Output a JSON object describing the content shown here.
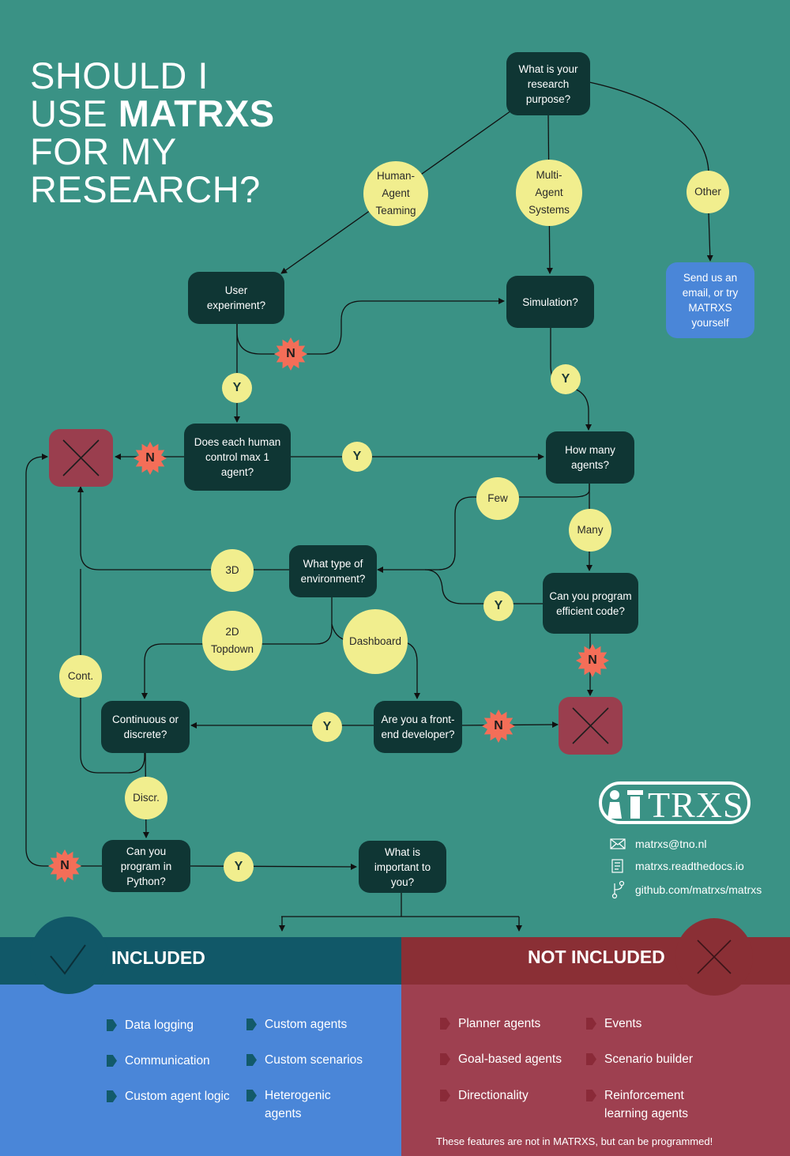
{
  "title": {
    "line1": "SHOULD I",
    "line2_prefix": "USE ",
    "line2_bold": "MATRXS",
    "line3": "FOR MY",
    "line4": "RESEARCH?"
  },
  "nodes": {
    "research_purpose": "What is your research purpose?",
    "human_agent_teaming": "Human-Agent Teaming",
    "multi_agent_systems": "Multi-Agent Systems",
    "other": "Other",
    "send_email": "Send us an email, or try MATRXS yourself",
    "user_experiment": "User experiment?",
    "simulation": "Simulation?",
    "each_human_control": "Does each human control max 1 agent?",
    "how_many_agents": "How many agents?",
    "few": "Few",
    "many": "Many",
    "environment_type": "What type of environment?",
    "program_efficient": "Can you program efficient code?",
    "env_3d": "3D",
    "env_2d": "2D Topdown",
    "env_dashboard": "Dashboard",
    "cont": "Cont.",
    "discr": "Discr.",
    "continuous_or_discrete": "Continuous or discrete?",
    "frontend_developer": "Are you a front-end developer?",
    "program_python": "Can you program in Python?",
    "what_important": "What is important to you?"
  },
  "answers": {
    "yes": "Y",
    "no": "N"
  },
  "logo": {
    "text": "TRXS",
    "icon": "matrxs-logo-icon"
  },
  "contact": [
    {
      "icon": "mail-icon",
      "text": "matrxs@tno.nl"
    },
    {
      "icon": "document-icon",
      "text": "matrxs.readthedocs.io"
    },
    {
      "icon": "git-branch-icon",
      "text": "github.com/matrxs/matrxs"
    }
  ],
  "included": {
    "title": "INCLUDED",
    "icon": "checkmark-icon",
    "col1": [
      "Data logging",
      "Communication",
      "Custom agent logic"
    ],
    "col2": [
      "Custom agents",
      "Custom scenarios",
      "Heterogenic agents"
    ]
  },
  "not_included": {
    "title": "NOT INCLUDED",
    "icon": "cross-icon",
    "col1": [
      "Planner agents",
      "Goal-based agents",
      "Directionality"
    ],
    "col2": [
      "Events",
      "Scenario builder",
      "Reinforcement learning agents"
    ],
    "note": "These features are not in MATRXS, but can be programmed!"
  },
  "colors": {
    "background": "#3a9285",
    "node": "#0f3634",
    "bubble": "#f1ee8e",
    "no_star": "#f46e58",
    "stop": "#9a3e4e",
    "included": "#4a86d8",
    "not_included": "#9e4050"
  }
}
